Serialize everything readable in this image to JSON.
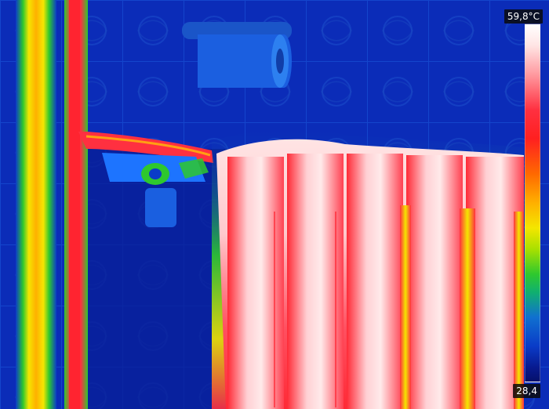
{
  "image": {
    "type": "thermal-camera-view",
    "colors": {
      "cold": "#0a2aa8",
      "cool": "#2ec82e",
      "warm": "#f4e600",
      "hot": "#ff2a36",
      "hottest": "#ffe8e8"
    }
  },
  "temperature_scale": {
    "max_label": "59,8°C",
    "min_label": "28,4"
  }
}
